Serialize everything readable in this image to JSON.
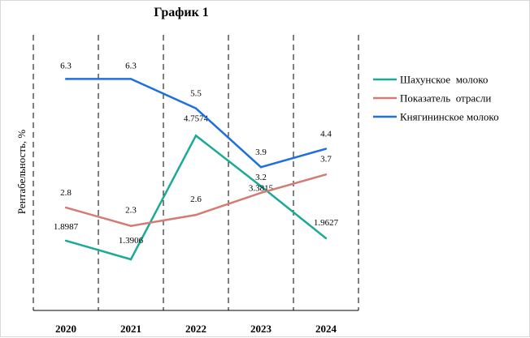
{
  "chart_data": {
    "type": "line",
    "title": "График 1",
    "xlabel": "",
    "ylabel": "Рентабельность, %",
    "categories": [
      "2020",
      "2021",
      "2022",
      "2023",
      "2024"
    ],
    "ylim": [
      0,
      7.5
    ],
    "grid": "vertical dashed",
    "legend_position": "right",
    "series": [
      {
        "name": "Шахунское  молоко",
        "color": "#1aaa96",
        "values": [
          1.8987,
          1.3906,
          4.7574,
          3.3815,
          1.9627
        ],
        "labels": [
          "1.8987",
          "1.3906",
          "4.7574",
          "3.3815",
          "1.9627"
        ]
      },
      {
        "name": "Показатель  отрасли",
        "color": "#d47b73",
        "values": [
          2.8,
          2.3,
          2.6,
          3.2,
          3.7
        ],
        "labels": [
          "2.8",
          "2.3",
          "2.6",
          "3.2",
          "3.7"
        ]
      },
      {
        "name": "Княгининское молоко",
        "color": "#1e6fe0",
        "values": [
          6.3,
          6.3,
          5.5,
          3.9,
          4.4
        ],
        "labels": [
          "6.3",
          "6.3",
          "5.5",
          "3.9",
          "4.4"
        ]
      }
    ]
  }
}
